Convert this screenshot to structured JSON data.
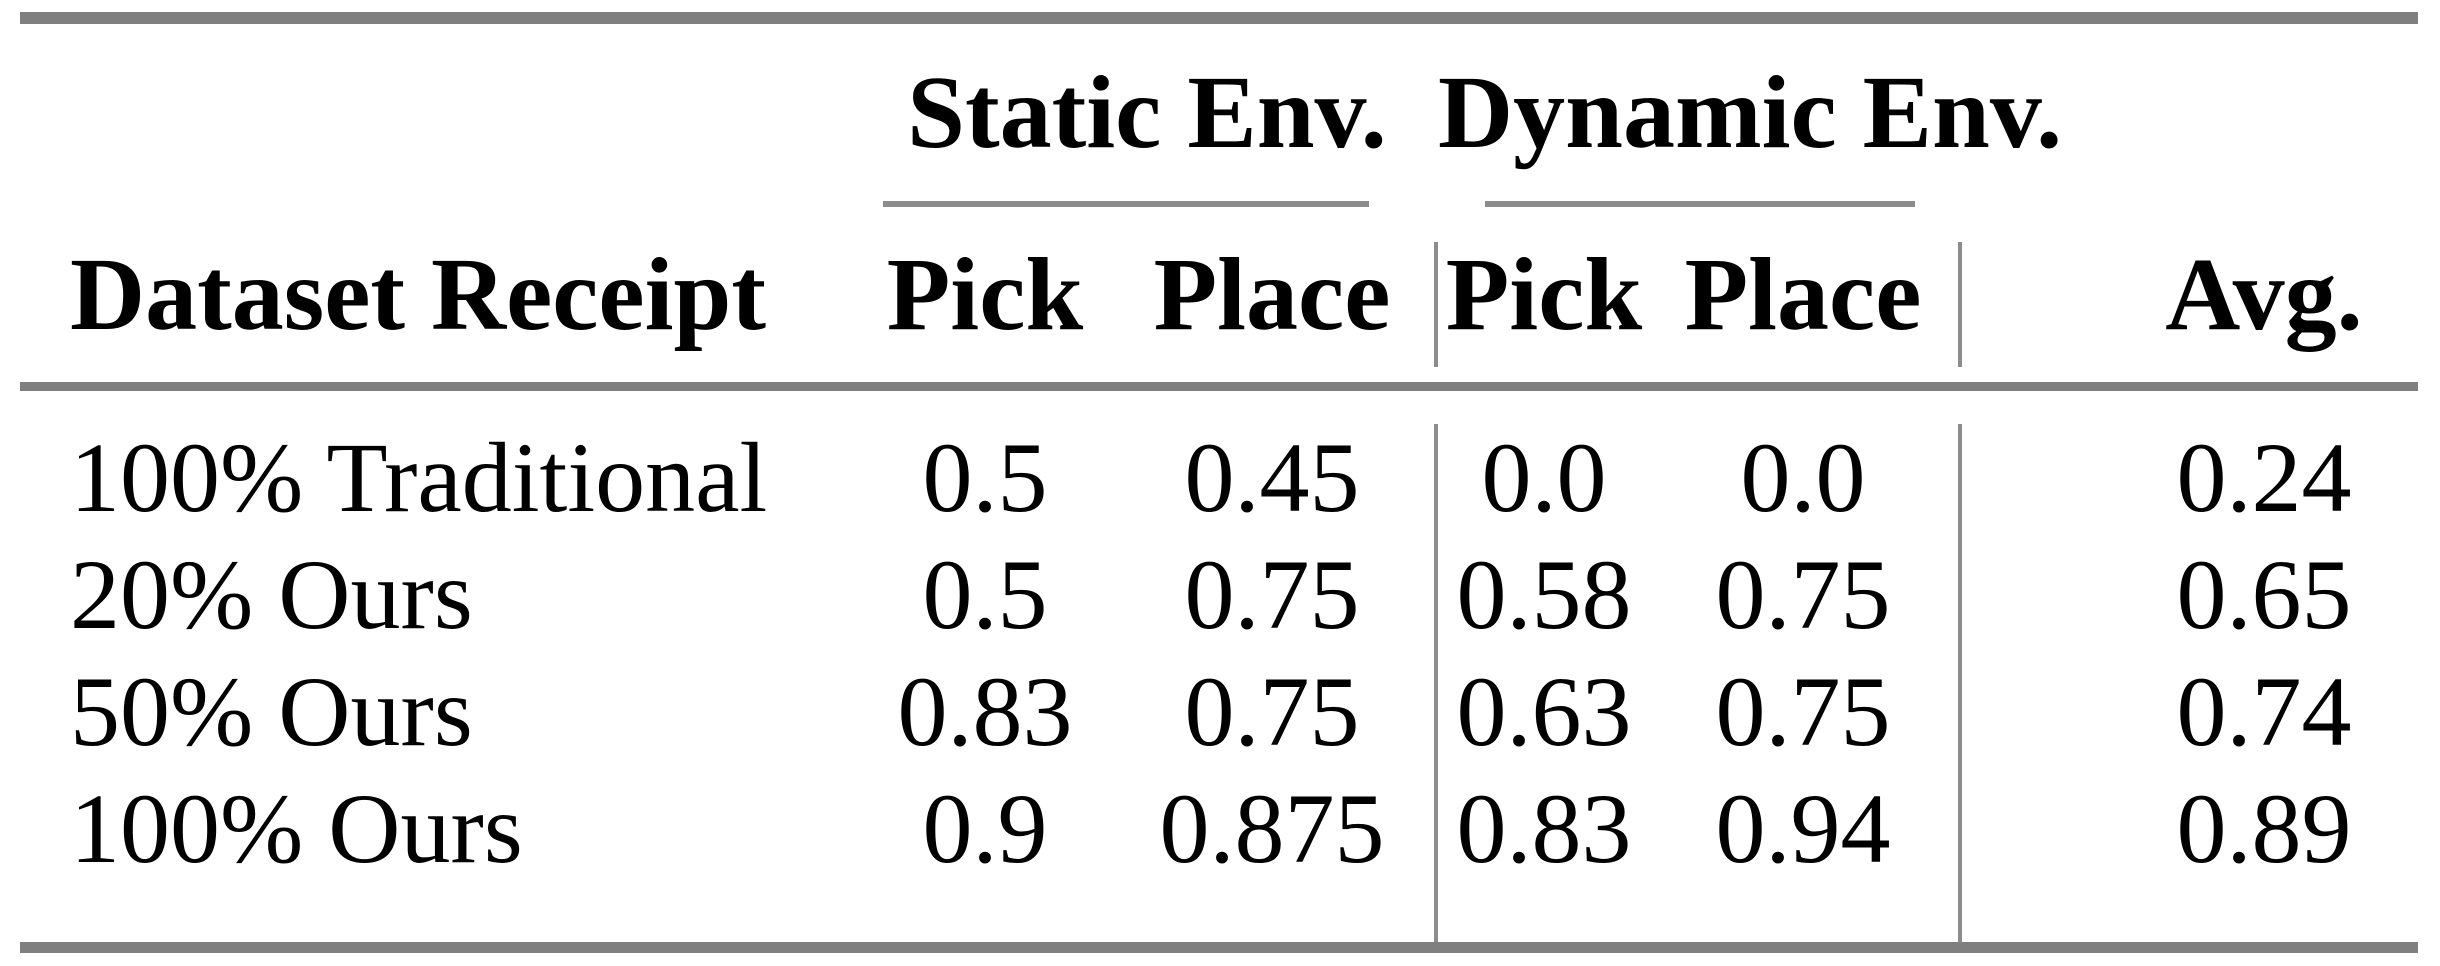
{
  "table": {
    "groups": {
      "static": "Static Env.",
      "dynamic": "Dynamic Env."
    },
    "headers": {
      "row": "Dataset Receipt",
      "static_pick": "Pick",
      "static_place": "Place",
      "dynamic_pick": "Pick",
      "dynamic_place": "Place",
      "avg": "Avg."
    },
    "rows": [
      {
        "label": "100% Traditional",
        "static_pick": "0.5",
        "static_place": "0.45",
        "dynamic_pick": "0.0",
        "dynamic_place": "0.0",
        "avg": "0.24"
      },
      {
        "label": "20% Ours",
        "static_pick": "0.5",
        "static_place": "0.75",
        "dynamic_pick": "0.58",
        "dynamic_place": "0.75",
        "avg": "0.65"
      },
      {
        "label": "50% Ours",
        "static_pick": "0.83",
        "static_place": "0.75",
        "dynamic_pick": "0.63",
        "dynamic_place": "0.75",
        "avg": "0.74"
      },
      {
        "label": "100% Ours",
        "static_pick": "0.9",
        "static_place": "0.875",
        "dynamic_pick": "0.83",
        "dynamic_place": "0.94",
        "avg": "0.89"
      }
    ],
    "colors": {
      "rule_gray": "#7f7f7f",
      "light_rule_gray": "#8c8c8c",
      "text": "#000000",
      "background": "#ffffff"
    }
  },
  "chart_data": {
    "type": "table",
    "title": "",
    "column_groups": [
      "",
      "Static Env.",
      "Static Env.",
      "Dynamic Env.",
      "Dynamic Env.",
      ""
    ],
    "columns": [
      "Dataset Receipt",
      "Pick",
      "Place",
      "Pick",
      "Place",
      "Avg."
    ],
    "rows": [
      [
        "100% Traditional",
        0.5,
        0.45,
        0.0,
        0.0,
        0.24
      ],
      [
        "20% Ours",
        0.5,
        0.75,
        0.58,
        0.75,
        0.65
      ],
      [
        "50% Ours",
        0.83,
        0.75,
        0.63,
        0.75,
        0.74
      ],
      [
        "100% Ours",
        0.9,
        0.875,
        0.83,
        0.94,
        0.89
      ]
    ]
  }
}
